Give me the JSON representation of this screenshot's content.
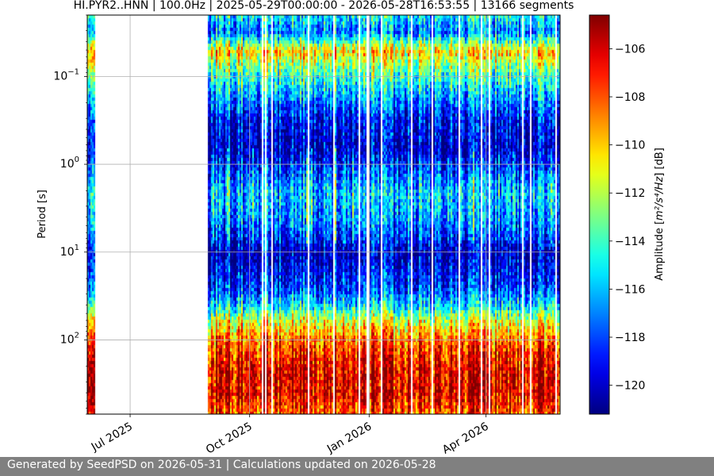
{
  "chart_data": {
    "type": "heatmap",
    "title": "HI.PYR2..HNN | 100.0Hz | 2025-05-29T00:00:00 - 2026-05-28T16:53:55 | 13166 segments",
    "xlabel": "",
    "ylabel": "Period [s]",
    "x_range": [
      "2025-05-29",
      "2026-05-28"
    ],
    "x_ticks": [
      {
        "date": "2025-07-01",
        "label": "Jul 2025"
      },
      {
        "date": "2025-10-01",
        "label": "Oct 2025"
      },
      {
        "date": "2026-01-01",
        "label": "Jan 2026"
      },
      {
        "date": "2026-04-01",
        "label": "Apr 2026"
      }
    ],
    "y_scale": "log",
    "y_inverted": true,
    "y_range": [
      0.02,
      700
    ],
    "y_ticks": [
      {
        "value": 0.1,
        "base": "10",
        "exp": "−1"
      },
      {
        "value": 1,
        "base": "10",
        "exp": "0"
      },
      {
        "value": 10,
        "base": "10",
        "exp": "1"
      },
      {
        "value": 100,
        "base": "10",
        "exp": "2"
      }
    ],
    "grid": true,
    "colormap": "jet",
    "colorbar": {
      "label_prefix": "Amplitude [",
      "label_math": "m²/s⁴/Hz",
      "label_suffix": "] [dB]",
      "range": [
        -121.2,
        -104.6
      ],
      "ticks": [
        {
          "value": -106,
          "label": "−106"
        },
        {
          "value": -108,
          "label": "−108"
        },
        {
          "value": -110,
          "label": "−110"
        },
        {
          "value": -112,
          "label": "−112"
        },
        {
          "value": -114,
          "label": "−114"
        },
        {
          "value": -116,
          "label": "−116"
        },
        {
          "value": -118,
          "label": "−118"
        },
        {
          "value": -120,
          "label": "−120"
        }
      ]
    },
    "data_gaps": [
      [
        "2025-06-03",
        "2025-08-29"
      ]
    ],
    "mean_profile": [
      {
        "period": 0.02,
        "db": -115
      },
      {
        "period": 0.03,
        "db": -117
      },
      {
        "period": 0.05,
        "db": -110
      },
      {
        "period": 0.08,
        "db": -113
      },
      {
        "period": 0.15,
        "db": -116
      },
      {
        "period": 0.3,
        "db": -119
      },
      {
        "period": 0.7,
        "db": -120
      },
      {
        "period": 2.0,
        "db": -116
      },
      {
        "period": 4.0,
        "db": -117
      },
      {
        "period": 10,
        "db": -120
      },
      {
        "period": 25,
        "db": -118
      },
      {
        "period": 40,
        "db": -115
      },
      {
        "period": 60,
        "db": -111
      },
      {
        "period": 100,
        "db": -108
      },
      {
        "period": 200,
        "db": -106
      },
      {
        "period": 400,
        "db": -106
      },
      {
        "period": 700,
        "db": -108
      }
    ]
  },
  "footer": {
    "text": "Generated by SeedPSD on 2026-05-31 | Calculations updated on 2026-05-28"
  }
}
